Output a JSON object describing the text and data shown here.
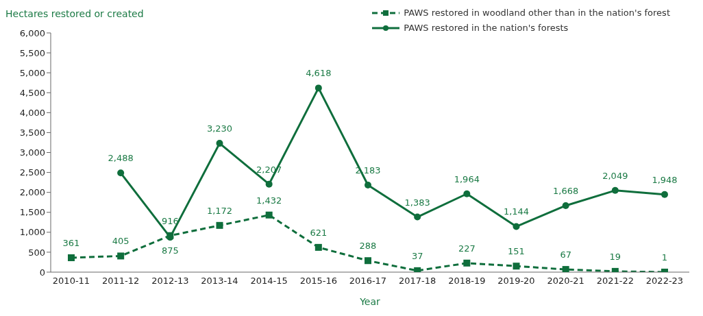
{
  "chart_data": {
    "type": "line",
    "ylabel": "Hectares restored or created",
    "xlabel": "Year",
    "categories": [
      "2010-11",
      "2011-12",
      "2012-13",
      "2013-14",
      "2014-15",
      "2015-16",
      "2016-17",
      "2017-18",
      "2018-19",
      "2019-20",
      "2020-21",
      "2021-22",
      "2022-23"
    ],
    "series": [
      {
        "name": "PAWS restored in woodland other than in the nation's forest",
        "color": "#0f6e3c",
        "marker": "square",
        "line_style": "dashed",
        "values": [
          361,
          405,
          916,
          1172,
          1432,
          621,
          288,
          37,
          227,
          151,
          67,
          19,
          1
        ],
        "value_labels": [
          "361",
          "405",
          "916",
          "1,172",
          "1,432",
          "621",
          "288",
          "37",
          "227",
          "151",
          "67",
          "19",
          "1"
        ]
      },
      {
        "name": "PAWS restored in the nation's forests",
        "color": "#0f6e3c",
        "marker": "circle",
        "line_style": "solid",
        "values": [
          null,
          2488,
          875,
          3230,
          2207,
          4618,
          2183,
          1383,
          1964,
          1144,
          1668,
          2049,
          1948
        ],
        "value_labels": [
          null,
          "2,488",
          "875",
          "3,230",
          "2,207",
          "4,618",
          "2,183",
          "1,383",
          "1,964",
          "1,144",
          "1,668",
          "2,049",
          "1,948"
        ]
      }
    ],
    "ylim": [
      0,
      6000
    ],
    "yticks": [
      0,
      500,
      {
        "value": 1000,
        "label": "1,000"
      },
      {
        "value": 1500,
        "label": "1,500"
      },
      {
        "value": 2000,
        "label": "2,000"
      },
      {
        "value": 2500,
        "label": "2,500"
      },
      {
        "value": 3000,
        "label": "3,000"
      },
      {
        "value": 3500,
        "label": "3,500"
      },
      {
        "value": 4000,
        "label": "4,000"
      },
      {
        "value": 4500,
        "label": "4,500"
      },
      {
        "value": 5000,
        "label": "5,000"
      },
      {
        "value": 5500,
        "label": "5,500"
      },
      {
        "value": 6000,
        "label": "6,000"
      }
    ],
    "legend": "top right"
  }
}
